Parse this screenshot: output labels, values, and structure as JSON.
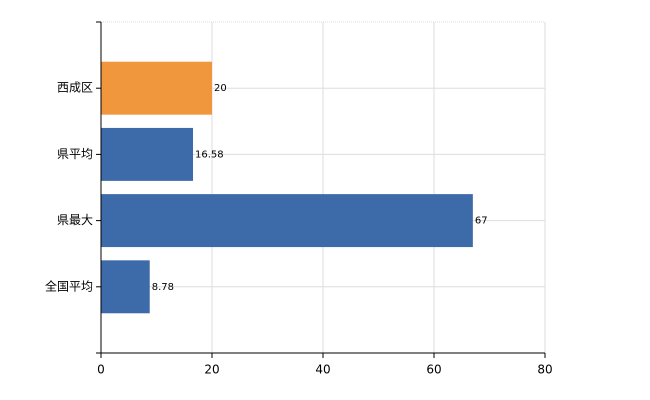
{
  "chart_data": {
    "type": "bar",
    "orientation": "horizontal",
    "categories": [
      "西成区",
      "県平均",
      "県最大",
      "全国平均"
    ],
    "values": [
      20,
      16.58,
      67,
      8.78
    ],
    "colors": [
      "#f0963c",
      "#3d6aa8",
      "#3d6aa8",
      "#3d6aa8"
    ],
    "xlim": [
      0,
      80
    ],
    "xticks": [
      0,
      20,
      40,
      60,
      80
    ],
    "grid": true
  }
}
